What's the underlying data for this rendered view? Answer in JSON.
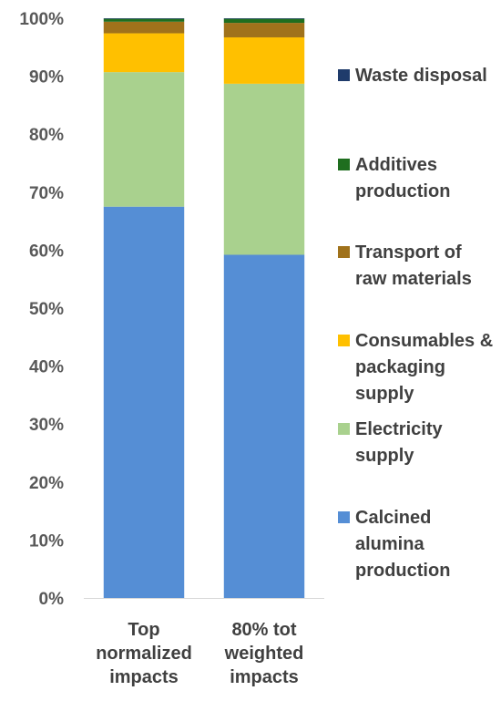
{
  "chart_data": {
    "type": "bar",
    "stacked": true,
    "percent_axis": true,
    "categories": [
      [
        "Top",
        "normalized",
        "impacts"
      ],
      [
        "80% tot",
        "weighted",
        "impacts"
      ]
    ],
    "series": [
      {
        "name": [
          "Calcined",
          "alumina",
          "production"
        ],
        "values": [
          67.5,
          59.2
        ],
        "color": "#558ed5"
      },
      {
        "name": [
          "Electricity",
          "supply"
        ],
        "values": [
          23.2,
          29.5
        ],
        "color": "#a9d18e"
      },
      {
        "name": [
          "Consumables &",
          "packaging",
          "supply"
        ],
        "values": [
          6.7,
          8.0
        ],
        "color": "#ffc000"
      },
      {
        "name": [
          "Transport of",
          "raw materials"
        ],
        "values": [
          2.0,
          2.5
        ],
        "color": "#a0721b"
      },
      {
        "name": [
          "Additives",
          "production"
        ],
        "values": [
          0.5,
          0.7
        ],
        "color": "#1f6e1f"
      },
      {
        "name": [
          "Waste disposal"
        ],
        "values": [
          0.1,
          0.1
        ],
        "color": "#1f3b6b"
      }
    ],
    "ylim": [
      0,
      100
    ],
    "yticks": [
      "0%",
      "10%",
      "20%",
      "30%",
      "40%",
      "50%",
      "60%",
      "70%",
      "80%",
      "90%",
      "100%"
    ],
    "grid": false,
    "legend": "right"
  }
}
